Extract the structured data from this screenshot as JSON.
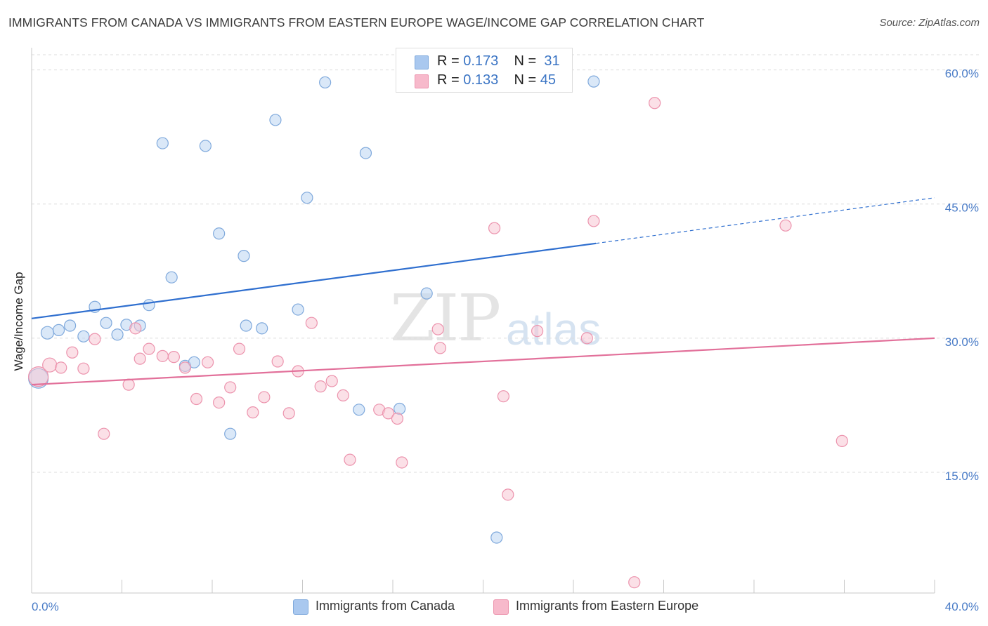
{
  "title": "IMMIGRANTS FROM CANADA VS IMMIGRANTS FROM EASTERN EUROPE WAGE/INCOME GAP CORRELATION CHART",
  "source": "Source: ZipAtlas.com",
  "watermark": {
    "zip": "ZIP",
    "atlas": "atlas"
  },
  "legend_top": {
    "rows": [
      {
        "r_label": "R = ",
        "r_value": "0.173",
        "n_label": "N = ",
        "n_value": "31",
        "color": "#a9c8ef"
      },
      {
        "r_label": "R = ",
        "r_value": "0.133",
        "n_label": "N = ",
        "n_value": "45",
        "color": "#f7b9cb"
      }
    ]
  },
  "legend_bottom": {
    "items": [
      {
        "label": "Immigrants from Canada",
        "color": "#a9c8ef"
      },
      {
        "label": "Immigrants from Eastern Europe",
        "color": "#f7b9cb"
      }
    ]
  },
  "colors": {
    "canada_fill": "#bcd5f3",
    "canada_stroke": "#7fa9dc",
    "canada_line": "#2f6fcf",
    "ee_fill": "#f8c6d4",
    "ee_stroke": "#ec93ad",
    "ee_line": "#e2709a",
    "tick_label": "#4a7cc7",
    "grid": "#dcdcdc"
  },
  "chart_data": {
    "type": "scatter",
    "title": "IMMIGRANTS FROM CANADA VS IMMIGRANTS FROM EASTERN EUROPE WAGE/INCOME GAP CORRELATION CHART",
    "xlabel": "",
    "ylabel": "Wage/Income Gap",
    "xlim": [
      0,
      40
    ],
    "ylim": [
      1.5,
      63.5
    ],
    "x_tick_labels": [
      "0.0%",
      "40.0%"
    ],
    "y_ticks": [
      15,
      30,
      45,
      60
    ],
    "y_tick_labels": [
      "15.0%",
      "30.0%",
      "45.0%",
      "60.0%"
    ],
    "grid": "horizontal dashed",
    "legend_position": "top-center",
    "series": [
      {
        "name": "Immigrants from Canada",
        "points": [
          [
            0.3,
            25.5
          ],
          [
            0.7,
            30.6
          ],
          [
            1.2,
            30.9
          ],
          [
            1.7,
            31.4
          ],
          [
            2.3,
            30.2
          ],
          [
            2.8,
            33.5
          ],
          [
            3.3,
            31.7
          ],
          [
            3.8,
            30.4
          ],
          [
            4.2,
            31.5
          ],
          [
            4.8,
            31.4
          ],
          [
            5.2,
            33.7
          ],
          [
            5.8,
            51.8
          ],
          [
            6.2,
            36.8
          ],
          [
            6.8,
            26.9
          ],
          [
            7.2,
            27.3
          ],
          [
            7.7,
            51.5
          ],
          [
            8.3,
            41.7
          ],
          [
            8.8,
            19.3
          ],
          [
            9.4,
            39.2
          ],
          [
            9.5,
            31.4
          ],
          [
            10.2,
            31.1
          ],
          [
            10.8,
            54.4
          ],
          [
            11.8,
            33.2
          ],
          [
            12.2,
            45.7
          ],
          [
            13.0,
            58.6
          ],
          [
            14.5,
            22.0
          ],
          [
            14.8,
            50.7
          ],
          [
            16.3,
            22.1
          ],
          [
            17.5,
            35.0
          ],
          [
            20.6,
            7.7
          ],
          [
            24.9,
            58.7
          ]
        ],
        "sizes": [
          14,
          9,
          8,
          8,
          8,
          8,
          8,
          8,
          8,
          8,
          8,
          8,
          8,
          8,
          8,
          8,
          8,
          8,
          8,
          8,
          8,
          8,
          8,
          8,
          8,
          8,
          8,
          8,
          8,
          8,
          8
        ],
        "trend": {
          "x": [
            0,
            25
          ],
          "y": [
            32.2,
            40.6
          ],
          "extended_x": [
            25,
            40
          ],
          "extended_y": [
            40.6,
            45.7
          ]
        }
      },
      {
        "name": "Immigrants from Eastern Europe",
        "points": [
          [
            0.3,
            25.7
          ],
          [
            0.8,
            27.0
          ],
          [
            1.3,
            26.7
          ],
          [
            1.8,
            28.4
          ],
          [
            2.3,
            26.6
          ],
          [
            2.8,
            29.9
          ],
          [
            3.2,
            19.3
          ],
          [
            4.3,
            24.8
          ],
          [
            4.6,
            31.1
          ],
          [
            4.8,
            27.7
          ],
          [
            5.2,
            28.8
          ],
          [
            5.8,
            28.0
          ],
          [
            6.3,
            27.9
          ],
          [
            6.8,
            26.7
          ],
          [
            7.3,
            23.2
          ],
          [
            7.8,
            27.3
          ],
          [
            8.3,
            22.8
          ],
          [
            8.8,
            24.5
          ],
          [
            9.2,
            28.8
          ],
          [
            9.8,
            21.7
          ],
          [
            10.3,
            23.4
          ],
          [
            10.9,
            27.4
          ],
          [
            11.4,
            21.6
          ],
          [
            11.8,
            26.3
          ],
          [
            12.4,
            31.7
          ],
          [
            12.8,
            24.6
          ],
          [
            13.3,
            25.2
          ],
          [
            13.8,
            23.6
          ],
          [
            14.1,
            16.4
          ],
          [
            15.4,
            22.0
          ],
          [
            15.8,
            21.6
          ],
          [
            16.2,
            21.0
          ],
          [
            16.4,
            16.1
          ],
          [
            18.0,
            31.0
          ],
          [
            18.1,
            28.9
          ],
          [
            20.5,
            42.3
          ],
          [
            20.9,
            23.5
          ],
          [
            21.1,
            12.5
          ],
          [
            22.4,
            30.8
          ],
          [
            24.6,
            30.0
          ],
          [
            24.9,
            43.1
          ],
          [
            26.7,
            2.7
          ],
          [
            27.6,
            56.3
          ],
          [
            33.4,
            42.6
          ],
          [
            35.9,
            18.5
          ]
        ],
        "sizes": [
          14,
          10,
          8,
          8,
          8,
          8,
          8,
          8,
          8,
          8,
          8,
          8,
          8,
          8,
          8,
          8,
          8,
          8,
          8,
          8,
          8,
          8,
          8,
          8,
          8,
          8,
          8,
          8,
          8,
          8,
          8,
          8,
          8,
          8,
          8,
          8,
          8,
          8,
          8,
          8,
          8,
          8,
          8,
          8,
          8
        ],
        "trend": {
          "x": [
            0,
            40
          ],
          "y": [
            24.8,
            30.0
          ]
        }
      }
    ]
  }
}
